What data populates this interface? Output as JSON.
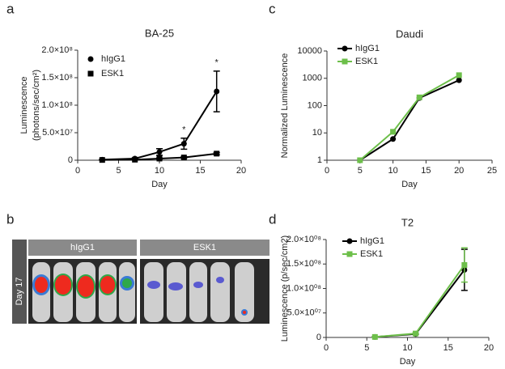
{
  "panels": [
    "a",
    "b",
    "c",
    "d"
  ],
  "imaging": {
    "groups": [
      "hIgG1",
      "ESK1"
    ],
    "row_label": "Day 17"
  },
  "chart_data": [
    {
      "type": "line",
      "title": "BA-25",
      "xlabel": "Day",
      "ylabel": [
        "Luminescence",
        "(photons/sec/cm²)"
      ],
      "x": [
        3,
        7,
        10,
        13,
        17
      ],
      "xlim": [
        0,
        20
      ],
      "xticks": [
        0,
        5,
        10,
        15,
        20
      ],
      "ylim": [
        0,
        200000000
      ],
      "yticks": [
        0,
        {
          "value": 50000000,
          "label": "5.0×10⁷"
        },
        {
          "value": 100000000,
          "label": "1.0×10⁸"
        },
        {
          "value": 150000000,
          "label": "1.5×10⁸"
        },
        {
          "value": 200000000,
          "label": "2.0×10⁸"
        }
      ],
      "series": [
        {
          "name": "hIgG1",
          "color": "#000000",
          "marker": "circle",
          "values": [
            1000000,
            3000000,
            15000000,
            30000000,
            125000000
          ],
          "errors": [
            500000,
            1000000,
            6000000,
            10000000,
            37000000
          ]
        },
        {
          "name": "ESK1",
          "color": "#000000",
          "marker": "square",
          "values": [
            500000,
            1000000,
            3000000,
            5000000,
            12000000
          ],
          "errors": [
            300000,
            500000,
            1000000,
            1500000,
            2000000
          ]
        }
      ],
      "annotations": [
        {
          "text": "*",
          "x": 13
        },
        {
          "text": "*",
          "x": 17
        }
      ]
    },
    {
      "type": "line",
      "title": "Daudi",
      "xlabel": "Day",
      "ylabel": [
        "Normalized Luminescence"
      ],
      "yscale": "log",
      "x": [
        5,
        10,
        14,
        20
      ],
      "xlim": [
        0,
        25
      ],
      "xticks": [
        0,
        5,
        10,
        15,
        20,
        25
      ],
      "ylim": [
        1,
        10000
      ],
      "yticks": [
        1,
        10,
        100,
        1000,
        10000
      ],
      "series": [
        {
          "name": "hIgG1",
          "color": "#000000",
          "marker": "circle",
          "values": [
            1,
            6,
            190,
            850
          ]
        },
        {
          "name": "ESK1",
          "color": "#6dbf4a",
          "marker": "square",
          "values": [
            1,
            11,
            200,
            1300
          ]
        }
      ]
    },
    {
      "type": "line",
      "title": "T2",
      "xlabel": "Day",
      "ylabel": [
        "Luminescence (p/sec/cm2)"
      ],
      "x": [
        6,
        11,
        17
      ],
      "xlim": [
        0,
        20
      ],
      "xticks": [
        0,
        5,
        10,
        15,
        20
      ],
      "ylim": [
        0,
        200000000
      ],
      "yticks": [
        0,
        {
          "value": 50000000,
          "label": "5.0×10⁰⁷"
        },
        {
          "value": 100000000,
          "label": "1.0×10⁰⁸"
        },
        {
          "value": 150000000,
          "label": "1.5×10⁰⁸"
        },
        {
          "value": 200000000,
          "label": "2.0×10⁰⁸"
        }
      ],
      "series": [
        {
          "name": "hIgG1",
          "color": "#000000",
          "marker": "circle",
          "values": [
            1000000,
            7000000,
            138000000
          ],
          "errors": [
            500000,
            1000000,
            42000000
          ]
        },
        {
          "name": "ESK1",
          "color": "#6dbf4a",
          "marker": "square",
          "values": [
            1000000,
            8000000,
            148000000
          ],
          "errors": [
            500000,
            1000000,
            35000000
          ]
        }
      ]
    }
  ]
}
